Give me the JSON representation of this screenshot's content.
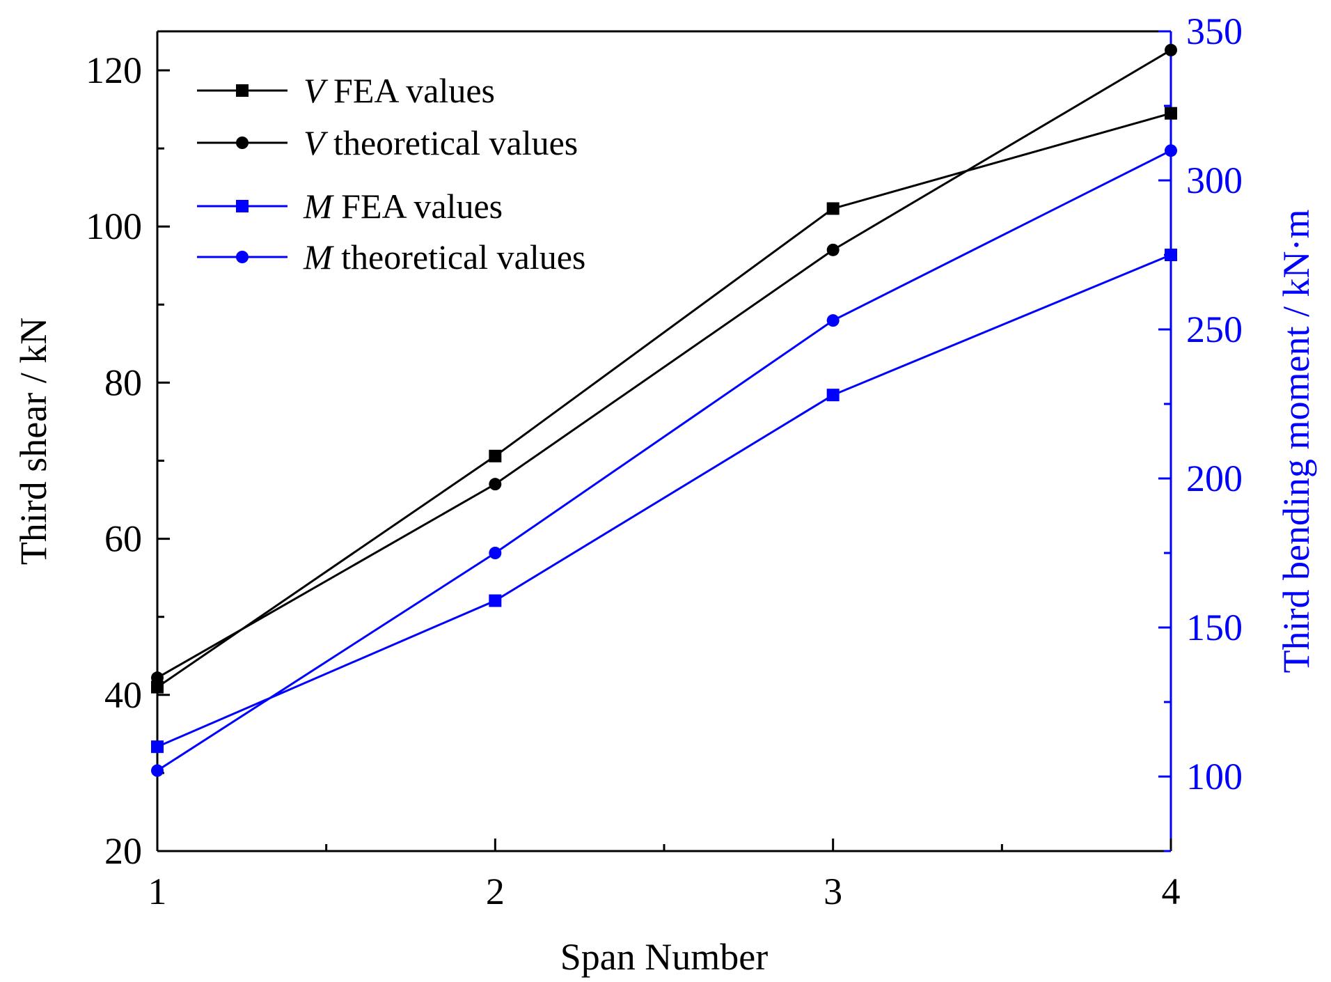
{
  "chart_data": {
    "type": "line",
    "xlabel": "Span Number",
    "ylabel_left": "Third shear / kN",
    "ylabel_right": "Third bending moment / kN·m",
    "x": [
      1,
      2,
      3,
      4
    ],
    "x_ticks": [
      "1",
      "2",
      "3",
      "4"
    ],
    "xlim": [
      1,
      4
    ],
    "ylim_left": [
      20,
      125
    ],
    "ylim_right": [
      75,
      350
    ],
    "y_ticks_left": [
      "20",
      "40",
      "60",
      "80",
      "100",
      "120"
    ],
    "y_ticks_right": [
      "100",
      "150",
      "200",
      "250",
      "300",
      "350"
    ],
    "grid": false,
    "legend_position": "top-left",
    "series": [
      {
        "name_var": "V",
        "name_rest": "FEA values",
        "axis": "left",
        "marker": "square",
        "color": "#000000",
        "values": [
          41.0,
          70.6,
          102.3,
          114.5
        ]
      },
      {
        "name_var": "V",
        "name_rest": "theoretical values",
        "axis": "left",
        "marker": "circle",
        "color": "#000000",
        "values": [
          42.2,
          67.0,
          97.0,
          122.6
        ]
      },
      {
        "name_var": "M",
        "name_rest": "FEA values",
        "axis": "right",
        "marker": "square",
        "color": "#0000ff",
        "values": [
          110.0,
          159.0,
          228.0,
          275.0
        ]
      },
      {
        "name_var": "M",
        "name_rest": "theoretical values",
        "axis": "right",
        "marker": "circle",
        "color": "#0000ff",
        "values": [
          102.0,
          175.0,
          253.0,
          310.0
        ]
      }
    ]
  }
}
